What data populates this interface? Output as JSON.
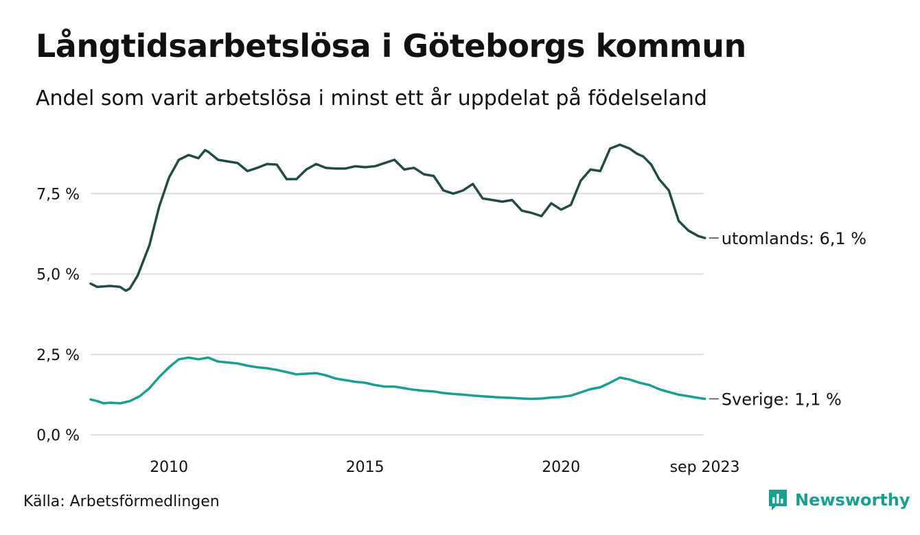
{
  "chart_data": {
    "type": "line",
    "title": "Långtidsarbetslösa i Göteborgs kommun",
    "subtitle": "Andel som varit arbetslösa i minst ett år uppdelat på födelseland",
    "ylim": [
      0,
      9.25
    ],
    "y_ticks": [
      0,
      2.5,
      5,
      7.5
    ],
    "y_tick_labels": [
      "0,0 %",
      "2,5 %",
      "5,0 %",
      "7,5 %"
    ],
    "xlim": [
      2008.0,
      2023.75
    ],
    "x_ticks": [
      2010,
      2015,
      2020,
      2023.667
    ],
    "x_tick_labels": [
      "2010",
      "2015",
      "2020",
      "sep 2023"
    ],
    "grid": true,
    "series": [
      {
        "name": "utomlands",
        "end_label": "utomlands: 6,1 %",
        "color": "#224a44",
        "x": [
          2008.0,
          2008.17,
          2008.5,
          2008.75,
          2008.9,
          2009.0,
          2009.2,
          2009.5,
          2009.75,
          2010.0,
          2010.25,
          2010.5,
          2010.75,
          2010.92,
          2011.0,
          2011.25,
          2011.5,
          2011.75,
          2012.0,
          2012.25,
          2012.5,
          2012.75,
          2013.0,
          2013.25,
          2013.5,
          2013.75,
          2014.0,
          2014.25,
          2014.5,
          2014.75,
          2015.0,
          2015.25,
          2015.5,
          2015.75,
          2016.0,
          2016.25,
          2016.5,
          2016.75,
          2017.0,
          2017.25,
          2017.5,
          2017.75,
          2018.0,
          2018.25,
          2018.5,
          2018.75,
          2019.0,
          2019.25,
          2019.5,
          2019.75,
          2020.0,
          2020.25,
          2020.5,
          2020.75,
          2021.0,
          2021.25,
          2021.5,
          2021.75,
          2021.92,
          2022.1,
          2022.3,
          2022.5,
          2022.75,
          2023.0,
          2023.25,
          2023.5,
          2023.67
        ],
        "values": [
          4.7,
          4.6,
          4.63,
          4.6,
          4.48,
          4.55,
          4.95,
          5.9,
          7.1,
          8.0,
          8.55,
          8.7,
          8.6,
          8.85,
          8.8,
          8.55,
          8.5,
          8.45,
          8.2,
          8.3,
          8.42,
          8.4,
          7.95,
          7.95,
          8.25,
          8.42,
          8.3,
          8.28,
          8.28,
          8.35,
          8.32,
          8.35,
          8.45,
          8.55,
          8.25,
          8.3,
          8.1,
          8.05,
          7.6,
          7.5,
          7.6,
          7.8,
          7.35,
          7.3,
          7.25,
          7.3,
          6.97,
          6.9,
          6.8,
          7.2,
          7.0,
          7.15,
          7.9,
          8.25,
          8.2,
          8.9,
          9.02,
          8.9,
          8.75,
          8.65,
          8.4,
          7.95,
          7.6,
          6.65,
          6.35,
          6.18,
          6.12
        ]
      },
      {
        "name": "Sverige",
        "end_label": "Sverige: 1,1 %",
        "color": "#1a9e8f",
        "x": [
          2008.0,
          2008.17,
          2008.33,
          2008.5,
          2008.75,
          2009.0,
          2009.25,
          2009.5,
          2009.75,
          2010.0,
          2010.25,
          2010.5,
          2010.75,
          2011.0,
          2011.25,
          2011.5,
          2011.75,
          2012.0,
          2012.25,
          2012.5,
          2012.75,
          2013.0,
          2013.25,
          2013.5,
          2013.75,
          2014.0,
          2014.25,
          2014.5,
          2014.75,
          2015.0,
          2015.25,
          2015.5,
          2015.75,
          2016.0,
          2016.25,
          2016.5,
          2016.75,
          2017.0,
          2017.25,
          2017.5,
          2017.75,
          2018.0,
          2018.25,
          2018.5,
          2018.75,
          2019.0,
          2019.25,
          2019.5,
          2019.75,
          2020.0,
          2020.25,
          2020.5,
          2020.75,
          2021.0,
          2021.25,
          2021.5,
          2021.75,
          2022.0,
          2022.25,
          2022.5,
          2022.75,
          2023.0,
          2023.25,
          2023.5,
          2023.67
        ],
        "values": [
          1.1,
          1.05,
          0.98,
          1.0,
          0.98,
          1.05,
          1.2,
          1.45,
          1.8,
          2.1,
          2.35,
          2.4,
          2.35,
          2.4,
          2.28,
          2.25,
          2.22,
          2.15,
          2.1,
          2.07,
          2.02,
          1.95,
          1.88,
          1.9,
          1.92,
          1.85,
          1.75,
          1.7,
          1.65,
          1.62,
          1.55,
          1.5,
          1.5,
          1.45,
          1.4,
          1.37,
          1.35,
          1.3,
          1.27,
          1.25,
          1.22,
          1.2,
          1.18,
          1.16,
          1.15,
          1.13,
          1.12,
          1.13,
          1.16,
          1.18,
          1.22,
          1.32,
          1.42,
          1.48,
          1.62,
          1.78,
          1.72,
          1.62,
          1.55,
          1.42,
          1.33,
          1.25,
          1.2,
          1.15,
          1.12
        ]
      }
    ]
  },
  "source": "Källa: Arbetsförmedlingen",
  "brand": {
    "name": "Newsworthy",
    "icon": "newsworthy-logo-icon",
    "color": "#1a9e8f"
  },
  "colors": {
    "grid": "#dcdcdc",
    "text": "#111111"
  }
}
